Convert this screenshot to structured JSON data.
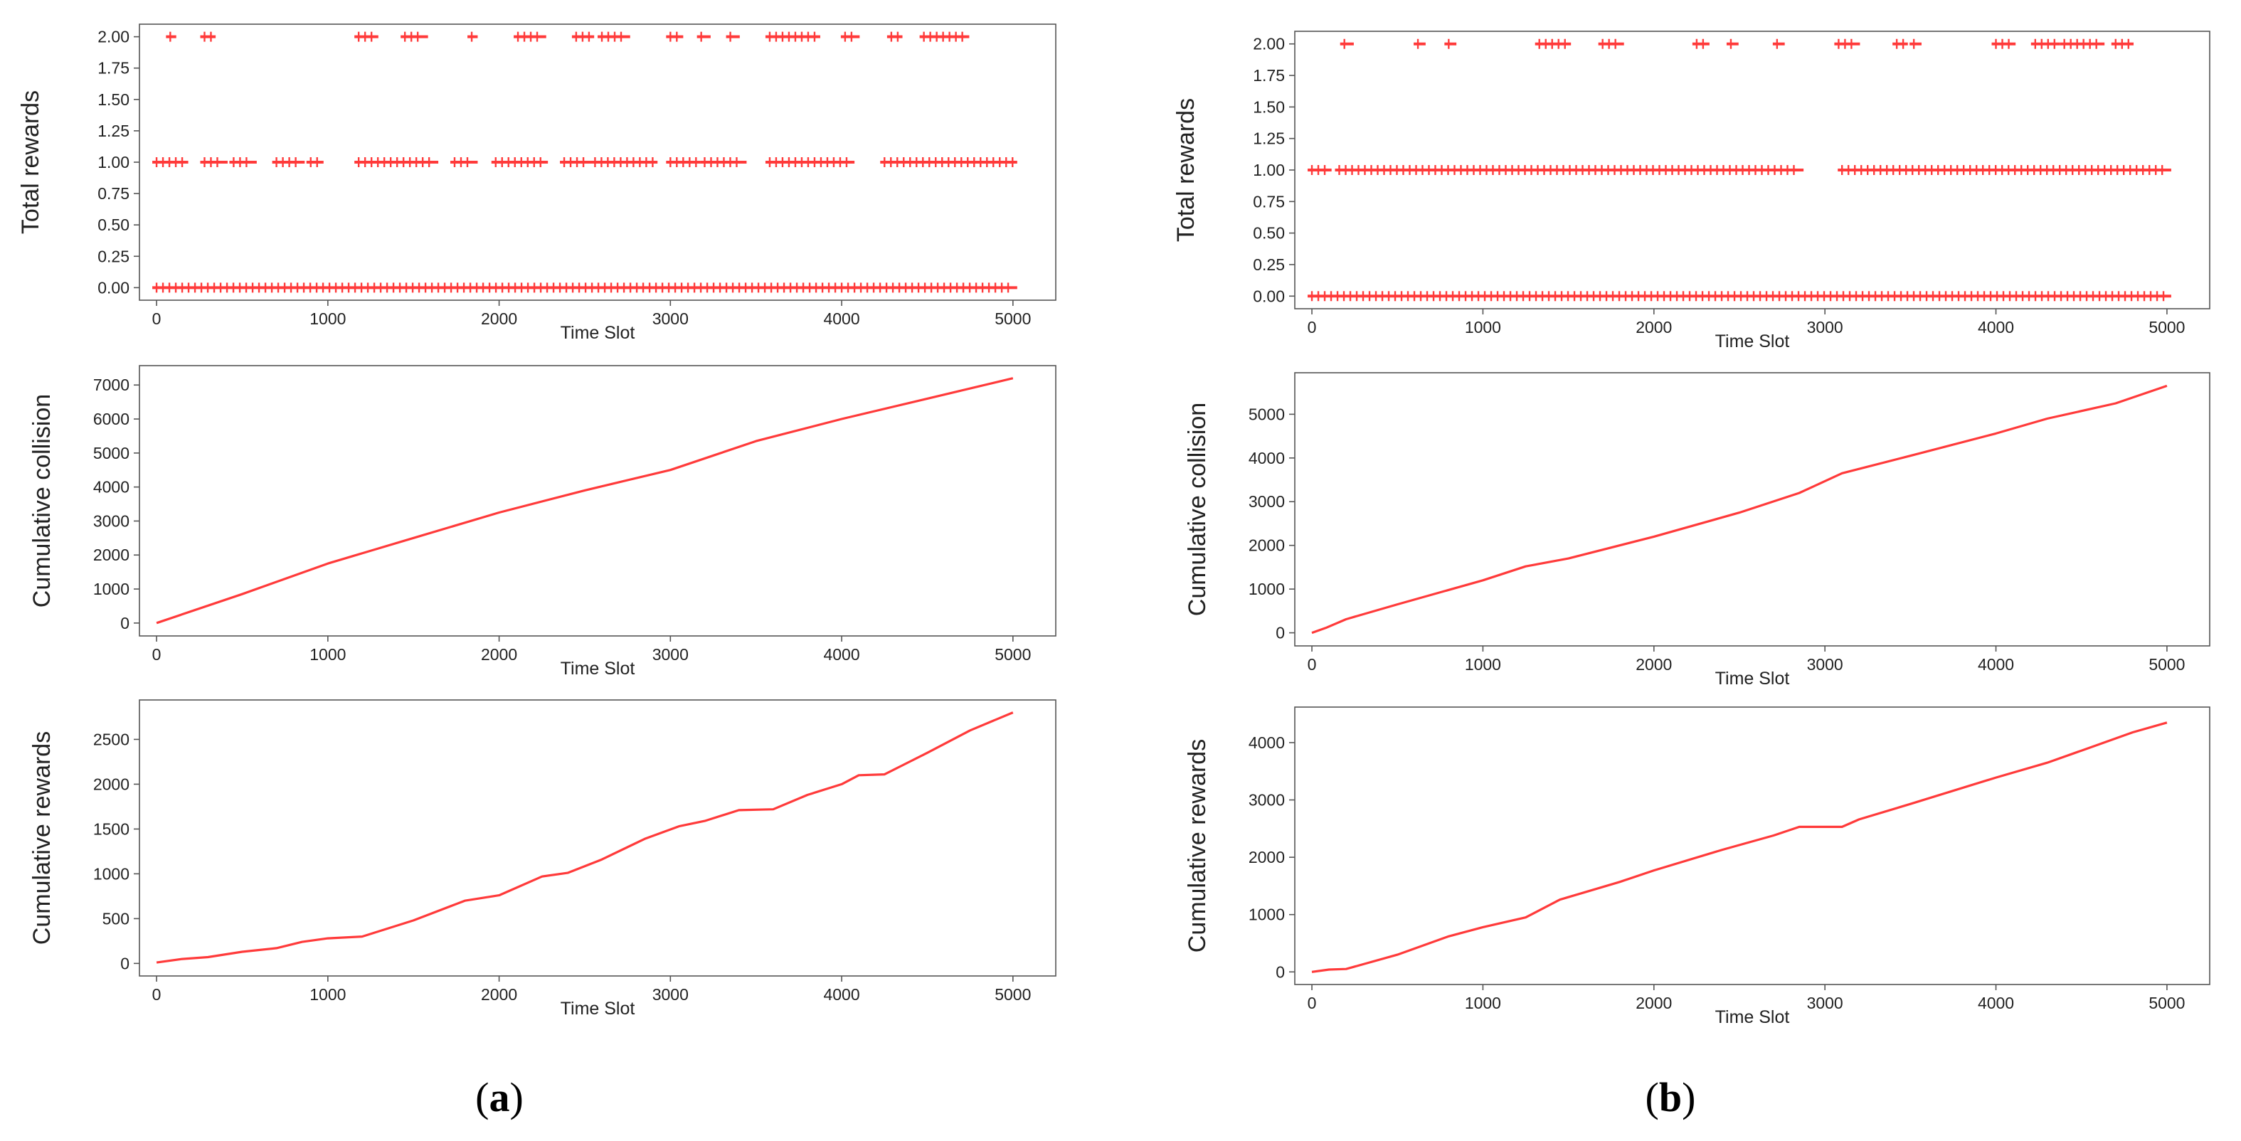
{
  "figure": {
    "panels": [
      {
        "id": "a",
        "open": "(",
        "letter": "a",
        "close": ")"
      },
      {
        "id": "b",
        "open": "(",
        "letter": "b",
        "close": ")"
      }
    ]
  },
  "colors": {
    "series": "#ff3a3a",
    "axis": "#555555",
    "text": "#222222"
  },
  "chart_data": [
    {
      "id": "a-total-rewards",
      "panel": "a",
      "type": "scatter",
      "ylabel": "Total rewards",
      "xlabel": "Time Slot",
      "xlim": [
        -100,
        5250
      ],
      "ylim": [
        -0.1,
        2.1
      ],
      "xticks": [
        0,
        1000,
        2000,
        3000,
        4000,
        5000
      ],
      "yticks": [
        0.0,
        0.25,
        0.5,
        0.75,
        1.0,
        1.25,
        1.5,
        1.75,
        2.0
      ],
      "ytick_labels": [
        "0.00",
        "0.25",
        "0.50",
        "0.75",
        "1.00",
        "1.25",
        "1.50",
        "1.75",
        "2.00"
      ],
      "marker": "+",
      "series": [
        {
          "name": "reward=0",
          "y": 0,
          "x_ranges": [
            [
              0,
              5000
            ]
          ]
        },
        {
          "name": "reward=1",
          "y": 1,
          "x_ranges": [
            [
              0,
              160
            ],
            [
              280,
              390
            ],
            [
              450,
              560
            ],
            [
              700,
              840
            ],
            [
              900,
              950
            ],
            [
              1180,
              1620
            ],
            [
              1740,
              1850
            ],
            [
              1980,
              2260
            ],
            [
              2380,
              2520
            ],
            [
              2560,
              2900
            ],
            [
              3000,
              3150
            ],
            [
              3200,
              3420
            ],
            [
              3580,
              4050
            ],
            [
              4250,
              5000
            ]
          ]
        },
        {
          "name": "reward=2",
          "y": 2,
          "x_ranges": [
            [
              80,
              90
            ],
            [
              280,
              320
            ],
            [
              1180,
              1270
            ],
            [
              1450,
              1560
            ],
            [
              1840,
              1850
            ],
            [
              2110,
              2250
            ],
            [
              2450,
              2530
            ],
            [
              2600,
              2740
            ],
            [
              3000,
              3050
            ],
            [
              3180,
              3210
            ],
            [
              3350,
              3380
            ],
            [
              3580,
              3850
            ],
            [
              4020,
              4080
            ],
            [
              4290,
              4330
            ],
            [
              4480,
              4720
            ]
          ]
        }
      ]
    },
    {
      "id": "a-cumulative-collision",
      "panel": "a",
      "type": "line",
      "ylabel": "Cumulative collision",
      "xlabel": "Time Slot",
      "xlim": [
        -100,
        5250
      ],
      "ylim": [
        -380,
        7570
      ],
      "xticks": [
        0,
        1000,
        2000,
        3000,
        4000,
        5000
      ],
      "yticks": [
        0,
        1000,
        2000,
        3000,
        4000,
        5000,
        6000,
        7000
      ],
      "ytick_labels": [
        "0",
        "1000",
        "2000",
        "3000",
        "4000",
        "5000",
        "6000",
        "7000"
      ],
      "series": [
        {
          "name": "cumulative collision",
          "x": [
            0,
            500,
            1000,
            1500,
            2000,
            2500,
            3000,
            3500,
            4000,
            4500,
            5000
          ],
          "y": [
            0,
            850,
            1750,
            2500,
            3250,
            3900,
            4500,
            5350,
            6000,
            6600,
            7200
          ]
        }
      ]
    },
    {
      "id": "a-cumulative-rewards",
      "panel": "a",
      "type": "line",
      "ylabel": "Cumulative rewards",
      "xlabel": "Time Slot",
      "xlim": [
        -100,
        5250
      ],
      "ylim": [
        -140,
        2940
      ],
      "xticks": [
        0,
        1000,
        2000,
        3000,
        4000,
        5000
      ],
      "yticks": [
        0,
        500,
        1000,
        1500,
        2000,
        2500
      ],
      "ytick_labels": [
        "0",
        "500",
        "1000",
        "1500",
        "2000",
        "2500"
      ],
      "series": [
        {
          "name": "cumulative rewards",
          "x": [
            0,
            150,
            300,
            500,
            700,
            850,
            1000,
            1200,
            1500,
            1800,
            2000,
            2250,
            2400,
            2600,
            2850,
            3050,
            3200,
            3400,
            3600,
            3800,
            4000,
            4100,
            4250,
            4500,
            4750,
            5000
          ],
          "y": [
            10,
            50,
            70,
            130,
            170,
            240,
            280,
            300,
            480,
            700,
            760,
            970,
            1010,
            1160,
            1390,
            1530,
            1590,
            1710,
            1720,
            1880,
            2000,
            2100,
            2110,
            2350,
            2600,
            2800
          ]
        }
      ]
    },
    {
      "id": "b-total-rewards",
      "panel": "b",
      "type": "scatter",
      "ylabel": "Total rewards",
      "xlabel": "Time Slot",
      "xlim": [
        -100,
        5250
      ],
      "ylim": [
        -0.1,
        2.1
      ],
      "xticks": [
        0,
        1000,
        2000,
        3000,
        4000,
        5000
      ],
      "yticks": [
        0.0,
        0.25,
        0.5,
        0.75,
        1.0,
        1.25,
        1.5,
        1.75,
        2.0
      ],
      "ytick_labels": [
        "0.00",
        "0.25",
        "0.50",
        "0.75",
        "1.00",
        "1.25",
        "1.50",
        "1.75",
        "2.00"
      ],
      "marker": "+",
      "series": [
        {
          "name": "reward=0",
          "y": 0,
          "x_ranges": [
            [
              0,
              5000
            ]
          ]
        },
        {
          "name": "reward=1",
          "y": 1,
          "x_ranges": [
            [
              0,
              90
            ],
            [
              160,
              2850
            ],
            [
              3100,
              5000
            ]
          ]
        },
        {
          "name": "reward=2",
          "y": 2,
          "x_ranges": [
            [
              190,
              220
            ],
            [
              620,
              640
            ],
            [
              800,
              820
            ],
            [
              1330,
              1490
            ],
            [
              1700,
              1800
            ],
            [
              2250,
              2300
            ],
            [
              2450,
              2470
            ],
            [
              2720,
              2740
            ],
            [
              3080,
              3180
            ],
            [
              3420,
              3460
            ],
            [
              3520,
              3540
            ],
            [
              4000,
              4090
            ],
            [
              4230,
              4350
            ],
            [
              4400,
              4610
            ],
            [
              4700,
              4780
            ]
          ]
        }
      ]
    },
    {
      "id": "b-cumulative-collision",
      "panel": "b",
      "type": "line",
      "ylabel": "Cumulative collision",
      "xlabel": "Time Slot",
      "xlim": [
        -100,
        5250
      ],
      "ylim": [
        -300,
        5950
      ],
      "xticks": [
        0,
        1000,
        2000,
        3000,
        4000,
        5000
      ],
      "yticks": [
        0,
        1000,
        2000,
        3000,
        4000,
        5000
      ],
      "ytick_labels": [
        "0",
        "1000",
        "2000",
        "3000",
        "4000",
        "5000"
      ],
      "series": [
        {
          "name": "cumulative collision",
          "x": [
            0,
            80,
            200,
            500,
            1000,
            1250,
            1500,
            2000,
            2500,
            2850,
            3100,
            3500,
            4000,
            4300,
            4700,
            5000
          ],
          "y": [
            0,
            110,
            310,
            650,
            1200,
            1520,
            1700,
            2200,
            2750,
            3200,
            3650,
            4050,
            4560,
            4900,
            5250,
            5650
          ]
        }
      ]
    },
    {
      "id": "b-cumulative-rewards",
      "panel": "b",
      "type": "line",
      "ylabel": "Cumulative rewards",
      "xlabel": "Time Slot",
      "xlim": [
        -100,
        5250
      ],
      "ylim": [
        -220,
        4620
      ],
      "xticks": [
        0,
        1000,
        2000,
        3000,
        4000,
        5000
      ],
      "yticks": [
        0,
        1000,
        2000,
        3000,
        4000
      ],
      "ytick_labels": [
        "0",
        "1000",
        "2000",
        "3000",
        "4000"
      ],
      "series": [
        {
          "name": "cumulative rewards",
          "x": [
            0,
            100,
            200,
            500,
            800,
            1000,
            1250,
            1450,
            1800,
            2000,
            2400,
            2700,
            2850,
            3100,
            3200,
            3500,
            4000,
            4300,
            4500,
            4800,
            5000
          ],
          "y": [
            0,
            40,
            50,
            300,
            620,
            780,
            950,
            1260,
            1570,
            1770,
            2130,
            2380,
            2530,
            2530,
            2660,
            2930,
            3390,
            3650,
            3860,
            4180,
            4350
          ]
        }
      ]
    }
  ]
}
